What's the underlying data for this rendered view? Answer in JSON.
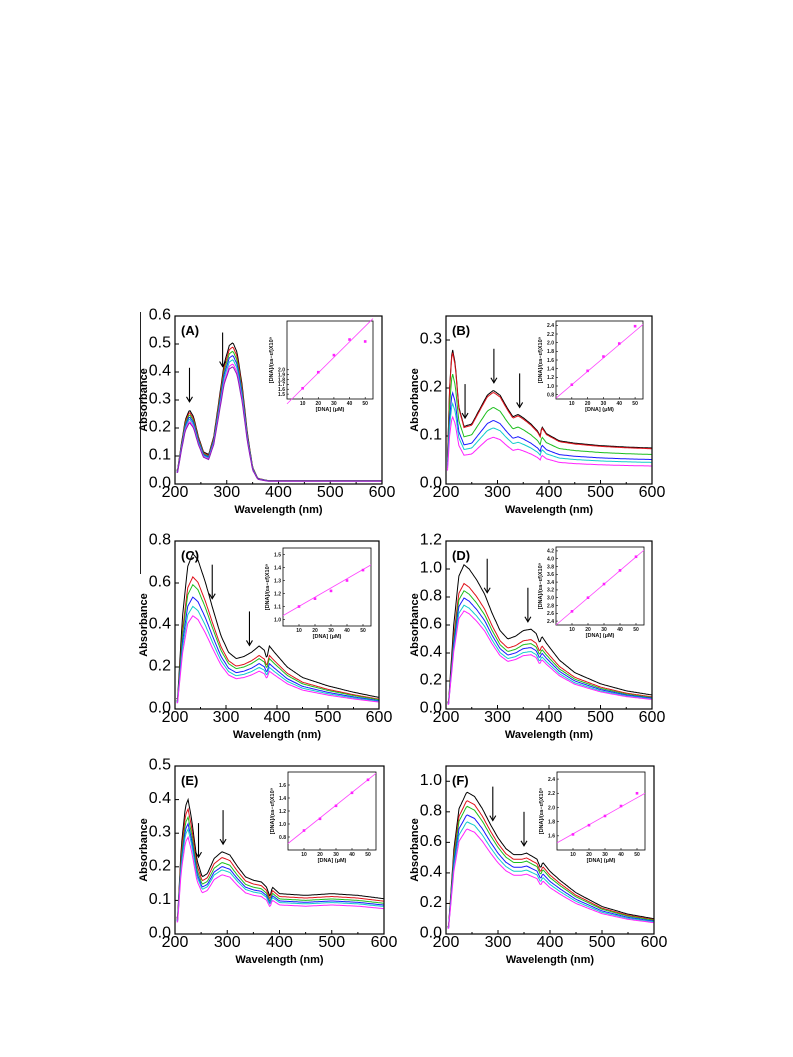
{
  "colors": {
    "series": [
      "#000000",
      "#e0121b",
      "#1dbf1d",
      "#1a1aff",
      "#12cccc",
      "#ff22ff",
      "#8a1fb8"
    ],
    "fit_line": "#ff44ff",
    "markers": "#ff22ff"
  },
  "annotations": {
    "arrow": "down-arrow-icon"
  },
  "chart_data": [
    {
      "panel": "(A)",
      "type": "line",
      "xlabel": "Wavelength (nm)",
      "ylabel": "Absorbance",
      "xlim": [
        200,
        600
      ],
      "ylim": [
        0,
        0.6
      ],
      "xticks": [
        200,
        300,
        400,
        500,
        600
      ],
      "yticks": [
        0.0,
        0.1,
        0.2,
        0.3,
        0.4,
        0.5,
        0.6
      ],
      "arrows_at_nm": [
        228,
        292
      ],
      "series_shape": [
        [
          205,
          0.05
        ],
        [
          212,
          0.14
        ],
        [
          220,
          0.23
        ],
        [
          228,
          0.265
        ],
        [
          236,
          0.24
        ],
        [
          245,
          0.17
        ],
        [
          255,
          0.115
        ],
        [
          265,
          0.105
        ],
        [
          275,
          0.17
        ],
        [
          285,
          0.3
        ],
        [
          295,
          0.43
        ],
        [
          305,
          0.495
        ],
        [
          312,
          0.505
        ],
        [
          320,
          0.47
        ],
        [
          330,
          0.35
        ],
        [
          340,
          0.18
        ],
        [
          350,
          0.06
        ],
        [
          360,
          0.02
        ],
        [
          380,
          0.012
        ],
        [
          400,
          0.012
        ],
        [
          500,
          0.012
        ],
        [
          600,
          0.012
        ]
      ],
      "shape_scale": "peak",
      "series_scale": [
        1.0,
        0.97,
        0.94,
        0.91,
        0.88,
        0.85,
        0.83
      ],
      "inset": {
        "xlabel": "[DNA] (μM)",
        "ylabel": "[DNA]/(εa−εf)X10⁹",
        "xlim": [
          0,
          55
        ],
        "ylim": [
          1.4,
          3.0
        ],
        "xticks": [
          10,
          20,
          30,
          40,
          50
        ],
        "yticks": [
          1.5,
          1.6,
          1.7,
          1.8,
          1.9,
          2.0
        ],
        "ytick_labels": [
          "1.5",
          "1.6",
          "1.7",
          "1.8",
          "1.9",
          "2.0"
        ],
        "points": [
          [
            10,
            1.62
          ],
          [
            20,
            1.95
          ],
          [
            30,
            2.3
          ],
          [
            40,
            2.62
          ],
          [
            50,
            2.58
          ]
        ],
        "fit": [
          [
            0,
            1.3
          ],
          [
            55,
            3.05
          ]
        ]
      }
    },
    {
      "panel": "(B)",
      "type": "line",
      "xlabel": "Wavelength (nm)",
      "ylabel": "Absorbance",
      "xlim": [
        200,
        600
      ],
      "ylim": [
        0,
        0.35
      ],
      "xticks": [
        200,
        300,
        400,
        500,
        600
      ],
      "yticks": [
        0.0,
        0.1,
        0.2,
        0.3
      ],
      "arrows_at_nm": [
        237,
        293,
        343
      ],
      "series_shape": [
        [
          202,
          0.02
        ],
        [
          207,
          0.2
        ],
        [
          212,
          0.285
        ],
        [
          218,
          0.25
        ],
        [
          225,
          0.16
        ],
        [
          235,
          0.12
        ],
        [
          250,
          0.125
        ],
        [
          265,
          0.155
        ],
        [
          280,
          0.185
        ],
        [
          292,
          0.195
        ],
        [
          305,
          0.185
        ],
        [
          318,
          0.16
        ],
        [
          330,
          0.14
        ],
        [
          340,
          0.145
        ],
        [
          350,
          0.138
        ],
        [
          365,
          0.125
        ],
        [
          378,
          0.11
        ],
        [
          383,
          0.1
        ],
        [
          386,
          0.12
        ],
        [
          395,
          0.105
        ],
        [
          420,
          0.09
        ],
        [
          450,
          0.085
        ],
        [
          500,
          0.08
        ],
        [
          550,
          0.077
        ],
        [
          600,
          0.075
        ]
      ],
      "shape_scale": "peak",
      "series_scale": [
        1.0,
        0.98,
        0.82,
        0.68,
        0.6,
        0.5
      ],
      "inset": {
        "xlabel": "[DNA] (μM)",
        "ylabel": "[DNA]/(εa−εf)X10⁹",
        "xlim": [
          0,
          55
        ],
        "ylim": [
          0.7,
          2.5
        ],
        "xticks": [
          10,
          20,
          30,
          40,
          50
        ],
        "yticks": [
          0.8,
          1.0,
          1.2,
          1.4,
          1.6,
          1.8,
          2.0,
          2.2,
          2.4
        ],
        "ytick_labels": [
          "0.8",
          "1.0",
          "1.2",
          "1.4",
          "1.6",
          "1.8",
          "2.0",
          "2.2",
          "2.4"
        ],
        "points": [
          [
            10,
            1.03
          ],
          [
            20,
            1.35
          ],
          [
            30,
            1.68
          ],
          [
            40,
            1.98
          ],
          [
            50,
            2.38
          ]
        ],
        "fit": [
          [
            0,
            0.72
          ],
          [
            55,
            2.42
          ]
        ]
      }
    },
    {
      "panel": "(C)",
      "type": "line",
      "xlabel": "Wavelength (nm)",
      "ylabel": "Absorbance",
      "xlim": [
        200,
        600
      ],
      "ylim": [
        0,
        0.8
      ],
      "xticks": [
        200,
        300,
        400,
        500,
        600
      ],
      "yticks": [
        0.0,
        0.2,
        0.4,
        0.6,
        0.8
      ],
      "arrows_at_nm": [
        273,
        346
      ],
      "series_shape": [
        [
          205,
          0.05
        ],
        [
          215,
          0.45
        ],
        [
          225,
          0.68
        ],
        [
          235,
          0.74
        ],
        [
          245,
          0.71
        ],
        [
          260,
          0.6
        ],
        [
          275,
          0.47
        ],
        [
          290,
          0.35
        ],
        [
          305,
          0.27
        ],
        [
          320,
          0.24
        ],
        [
          335,
          0.25
        ],
        [
          350,
          0.27
        ],
        [
          365,
          0.3
        ],
        [
          375,
          0.28
        ],
        [
          380,
          0.24
        ],
        [
          385,
          0.3
        ],
        [
          395,
          0.27
        ],
        [
          420,
          0.2
        ],
        [
          450,
          0.15
        ],
        [
          500,
          0.11
        ],
        [
          550,
          0.08
        ],
        [
          600,
          0.055
        ]
      ],
      "shape_scale": "peak",
      "series_scale": [
        1.0,
        0.85,
        0.8,
        0.72,
        0.66,
        0.6
      ],
      "inset": {
        "xlabel": "[DNA] (μM)",
        "ylabel": "[DNA]/(εa−εf)X10⁹",
        "xlim": [
          0,
          55
        ],
        "ylim": [
          0.95,
          1.55
        ],
        "xticks": [
          10,
          20,
          30,
          40,
          50
        ],
        "yticks": [
          1.0,
          1.1,
          1.2,
          1.3,
          1.4,
          1.5
        ],
        "ytick_labels": [
          "1.0",
          "1.1",
          "1.2",
          "1.3",
          "1.4",
          "1.5"
        ],
        "points": [
          [
            10,
            1.1
          ],
          [
            20,
            1.16
          ],
          [
            30,
            1.22
          ],
          [
            40,
            1.3
          ],
          [
            50,
            1.38
          ]
        ],
        "fit": [
          [
            0,
            1.03
          ],
          [
            55,
            1.42
          ]
        ]
      }
    },
    {
      "panel": "(D)",
      "type": "line",
      "xlabel": "Wavelength (nm)",
      "ylabel": "Absorbance",
      "xlim": [
        200,
        600
      ],
      "ylim": [
        0,
        1.2
      ],
      "xticks": [
        200,
        300,
        400,
        500,
        600
      ],
      "yticks": [
        0.0,
        0.2,
        0.4,
        0.6,
        0.8,
        1.0,
        1.2
      ],
      "arrows_at_nm": [
        280,
        359
      ],
      "series_shape": [
        [
          205,
          0.05
        ],
        [
          215,
          0.6
        ],
        [
          225,
          0.95
        ],
        [
          235,
          1.03
        ],
        [
          245,
          1.0
        ],
        [
          260,
          0.92
        ],
        [
          275,
          0.82
        ],
        [
          290,
          0.68
        ],
        [
          305,
          0.56
        ],
        [
          320,
          0.5
        ],
        [
          335,
          0.52
        ],
        [
          350,
          0.56
        ],
        [
          365,
          0.57
        ],
        [
          375,
          0.54
        ],
        [
          382,
          0.47
        ],
        [
          386,
          0.52
        ],
        [
          395,
          0.47
        ],
        [
          420,
          0.35
        ],
        [
          450,
          0.26
        ],
        [
          500,
          0.18
        ],
        [
          550,
          0.13
        ],
        [
          600,
          0.1
        ]
      ],
      "shape_scale": "peak",
      "series_scale": [
        1.0,
        0.87,
        0.82,
        0.77,
        0.72,
        0.68
      ],
      "inset": {
        "xlabel": "[DNA] (μM)",
        "ylabel": "[DNA]/(εa−εf)X10⁹",
        "xlim": [
          0,
          55
        ],
        "ylim": [
          2.3,
          4.3
        ],
        "xticks": [
          10,
          20,
          30,
          40,
          50
        ],
        "yticks": [
          2.4,
          2.6,
          2.8,
          3.0,
          3.2,
          3.4,
          3.6,
          3.8,
          4.0,
          4.2
        ],
        "ytick_labels": [
          "2.4",
          "2.6",
          "2.8",
          "3.0",
          "3.2",
          "3.4",
          "3.6",
          "3.8",
          "4.0",
          "4.2"
        ],
        "points": [
          [
            10,
            2.65
          ],
          [
            20,
            3.0
          ],
          [
            30,
            3.35
          ],
          [
            40,
            3.7
          ],
          [
            50,
            4.05
          ]
        ],
        "fit": [
          [
            0,
            2.3
          ],
          [
            55,
            4.22
          ]
        ]
      }
    },
    {
      "panel": "(E)",
      "type": "line",
      "xlabel": "Wavelength (nm)",
      "ylabel": "Absorbance",
      "xlim": [
        200,
        600
      ],
      "ylim": [
        0,
        0.5
      ],
      "xticks": [
        200,
        300,
        400,
        500,
        600
      ],
      "yticks": [
        0.0,
        0.1,
        0.2,
        0.3,
        0.4,
        0.5
      ],
      "arrows_at_nm": [
        245,
        292
      ],
      "series_shape": [
        [
          205,
          0.05
        ],
        [
          212,
          0.26
        ],
        [
          220,
          0.38
        ],
        [
          225,
          0.4
        ],
        [
          232,
          0.34
        ],
        [
          242,
          0.22
        ],
        [
          252,
          0.17
        ],
        [
          262,
          0.18
        ],
        [
          275,
          0.225
        ],
        [
          290,
          0.245
        ],
        [
          305,
          0.235
        ],
        [
          320,
          0.2
        ],
        [
          335,
          0.17
        ],
        [
          350,
          0.16
        ],
        [
          365,
          0.155
        ],
        [
          375,
          0.14
        ],
        [
          382,
          0.11
        ],
        [
          386,
          0.14
        ],
        [
          400,
          0.12
        ],
        [
          450,
          0.115
        ],
        [
          500,
          0.12
        ],
        [
          550,
          0.115
        ],
        [
          600,
          0.105
        ]
      ],
      "shape_scale": "peak",
      "series_scale": [
        1.0,
        0.93,
        0.87,
        0.82,
        0.78,
        0.72
      ],
      "inset": {
        "xlabel": "[DNA] (μM)",
        "ylabel": "[DNA]/(εa−εf)X10⁹",
        "xlim": [
          0,
          55
        ],
        "ylim": [
          0.6,
          1.8
        ],
        "xticks": [
          10,
          20,
          30,
          40,
          50
        ],
        "yticks": [
          0.8,
          1.0,
          1.2,
          1.4,
          1.6
        ],
        "ytick_labels": [
          "0.8",
          "1.0",
          "1.2",
          "1.4",
          "1.6"
        ],
        "points": [
          [
            10,
            0.9
          ],
          [
            20,
            1.08
          ],
          [
            30,
            1.28
          ],
          [
            40,
            1.48
          ],
          [
            50,
            1.68
          ]
        ],
        "fit": [
          [
            0,
            0.7
          ],
          [
            55,
            1.78
          ]
        ]
      }
    },
    {
      "panel": "(F)",
      "type": "line",
      "xlabel": "Wavelength (nm)",
      "ylabel": "Absorbance",
      "xlim": [
        200,
        600
      ],
      "ylim": [
        0,
        1.1
      ],
      "xticks": [
        200,
        300,
        400,
        500,
        600
      ],
      "yticks": [
        0.0,
        0.2,
        0.4,
        0.6,
        0.8,
        1.0
      ],
      "arrows_at_nm": [
        290,
        350
      ],
      "series_shape": [
        [
          205,
          0.05
        ],
        [
          215,
          0.55
        ],
        [
          225,
          0.82
        ],
        [
          240,
          0.93
        ],
        [
          255,
          0.9
        ],
        [
          270,
          0.82
        ],
        [
          285,
          0.72
        ],
        [
          300,
          0.63
        ],
        [
          315,
          0.56
        ],
        [
          330,
          0.52
        ],
        [
          345,
          0.52
        ],
        [
          355,
          0.53
        ],
        [
          365,
          0.51
        ],
        [
          375,
          0.49
        ],
        [
          382,
          0.43
        ],
        [
          386,
          0.47
        ],
        [
          400,
          0.41
        ],
        [
          420,
          0.35
        ],
        [
          450,
          0.27
        ],
        [
          500,
          0.18
        ],
        [
          550,
          0.13
        ],
        [
          600,
          0.1
        ]
      ],
      "shape_scale": "peak",
      "series_scale": [
        1.0,
        0.94,
        0.9,
        0.84,
        0.79,
        0.74
      ],
      "inset": {
        "xlabel": "[DNA] (μM)",
        "ylabel": "[DNA]/(εa−εf)X10⁹",
        "xlim": [
          0,
          55
        ],
        "ylim": [
          1.4,
          2.5
        ],
        "xticks": [
          10,
          20,
          30,
          40,
          50
        ],
        "yticks": [
          1.6,
          1.8,
          2.0,
          2.2,
          2.4
        ],
        "ytick_labels": [
          "1.6",
          "1.8",
          "2.0",
          "2.2",
          "2.4"
        ],
        "points": [
          [
            10,
            1.62
          ],
          [
            20,
            1.75
          ],
          [
            30,
            1.88
          ],
          [
            40,
            2.02
          ],
          [
            50,
            2.2
          ]
        ],
        "fit": [
          [
            0,
            1.5
          ],
          [
            55,
            2.2
          ]
        ]
      }
    }
  ]
}
